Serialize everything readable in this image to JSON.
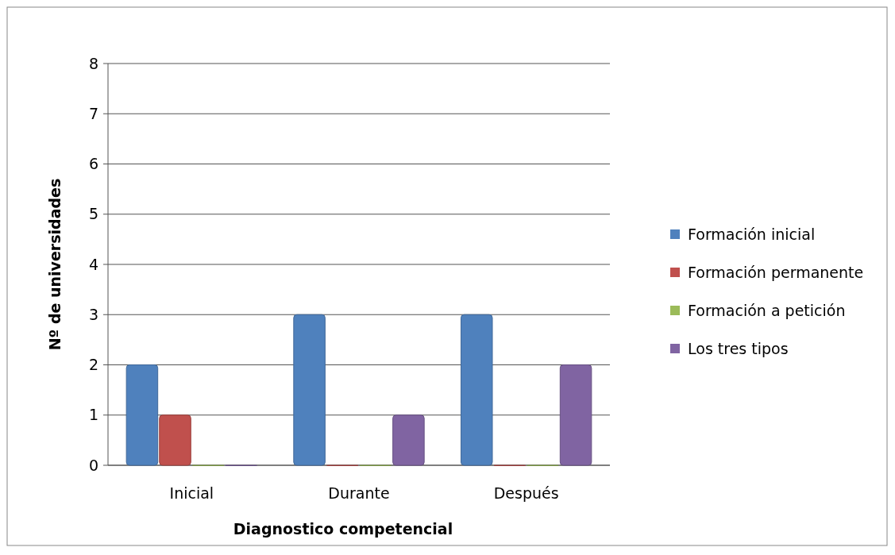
{
  "chart_data": {
    "type": "bar",
    "xlabel": "Diagnostico competencial",
    "ylabel": "Nº de universidades",
    "categories": [
      "Inicial",
      "Durante",
      "Después"
    ],
    "series": [
      {
        "name": "Formación inicial",
        "color": "#4f81bd",
        "values": [
          2,
          3,
          3
        ]
      },
      {
        "name": "Formación permanente",
        "color": "#c0504d",
        "values": [
          1,
          0,
          0
        ]
      },
      {
        "name": "Formación a petición",
        "color": "#9bbb59",
        "values": [
          0,
          0,
          0
        ]
      },
      {
        "name": "Los tres tipos",
        "color": "#8064a2",
        "values": [
          0,
          1,
          2
        ]
      }
    ],
    "ylim": [
      0,
      8
    ],
    "yticks": [
      0,
      1,
      2,
      3,
      4,
      5,
      6,
      7,
      8
    ],
    "grid": "y",
    "legend": "right"
  }
}
